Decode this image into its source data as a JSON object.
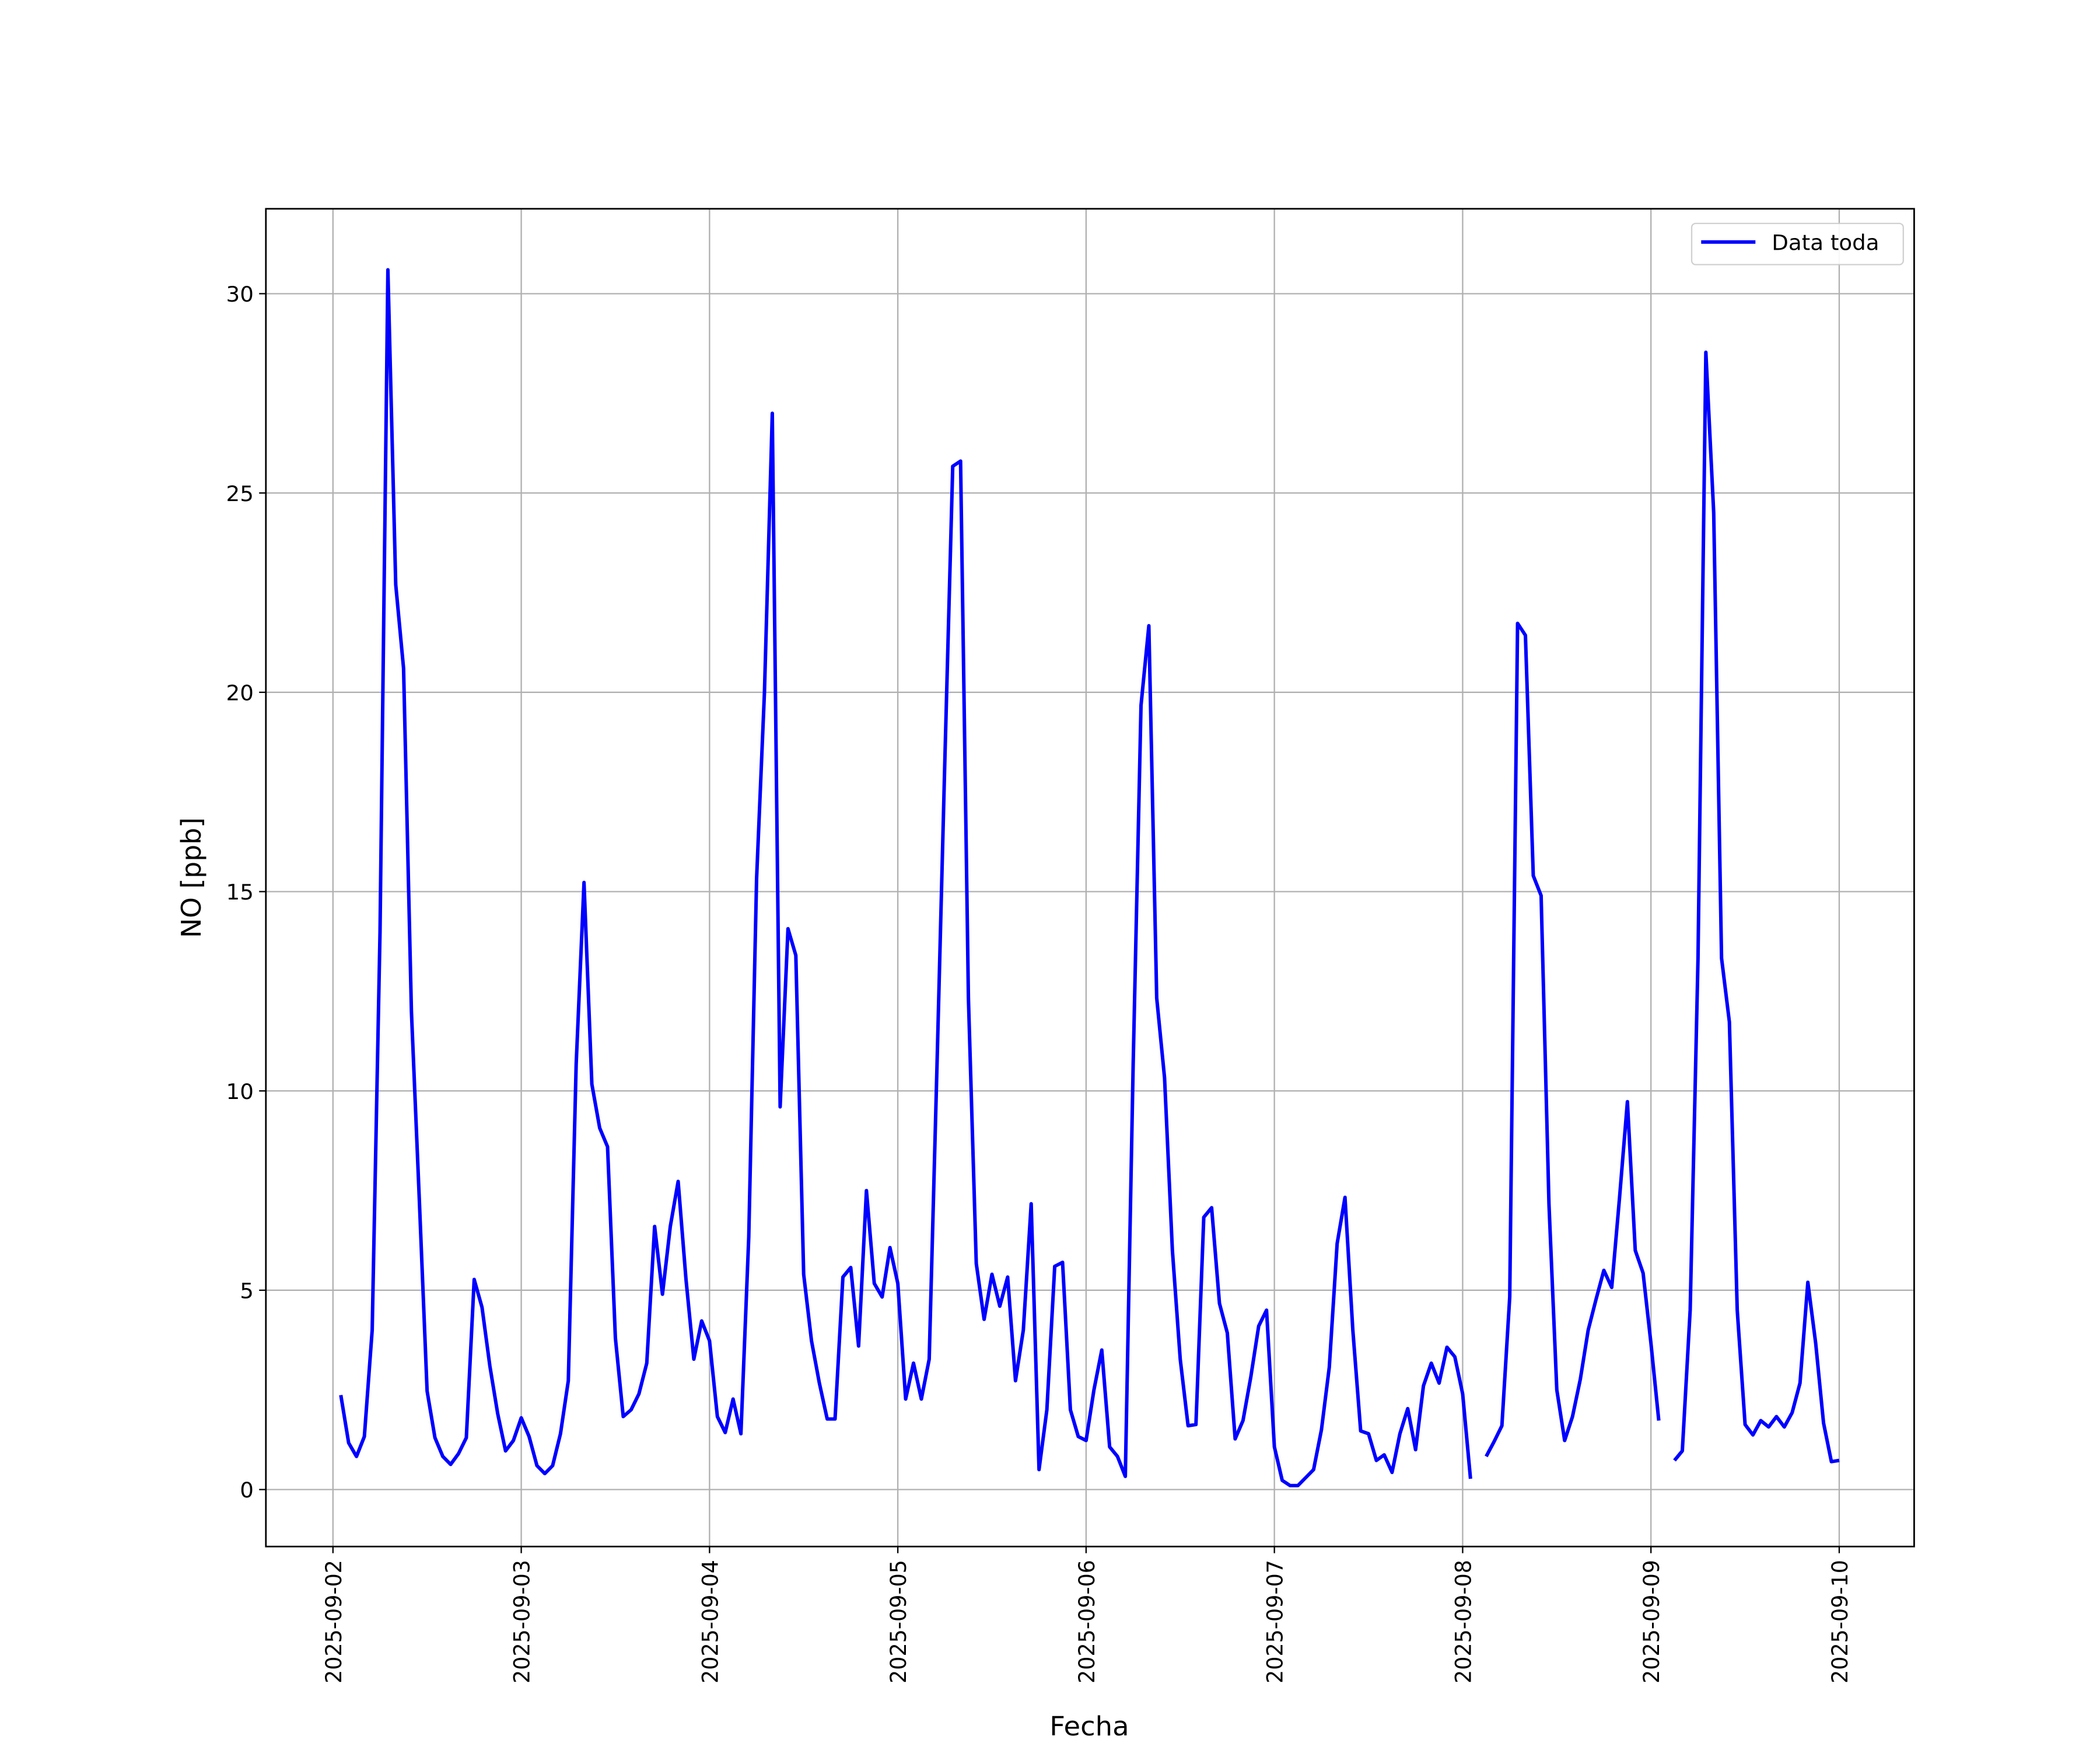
{
  "chart_data": {
    "type": "line",
    "xlabel": "Fecha",
    "ylabel": "NO [ppb]",
    "x": [
      "2025-09-02T01:00",
      "2025-09-02T02:00",
      "2025-09-02T03:00",
      "2025-09-02T04:00",
      "2025-09-02T05:00",
      "2025-09-02T06:00",
      "2025-09-02T07:00",
      "2025-09-02T08:00",
      "2025-09-02T09:00",
      "2025-09-02T10:00",
      "2025-09-02T11:00",
      "2025-09-02T12:00",
      "2025-09-02T13:00",
      "2025-09-02T14:00",
      "2025-09-02T15:00",
      "2025-09-02T16:00",
      "2025-09-02T17:00",
      "2025-09-02T18:00",
      "2025-09-02T19:00",
      "2025-09-02T20:00",
      "2025-09-02T21:00",
      "2025-09-02T22:00",
      "2025-09-02T23:00",
      "2025-09-03T00:00",
      "2025-09-03T01:00",
      "2025-09-03T02:00",
      "2025-09-03T03:00",
      "2025-09-03T04:00",
      "2025-09-03T05:00",
      "2025-09-03T06:00",
      "2025-09-03T07:00",
      "2025-09-03T08:00",
      "2025-09-03T09:00",
      "2025-09-03T10:00",
      "2025-09-03T11:00",
      "2025-09-03T12:00",
      "2025-09-03T13:00",
      "2025-09-03T14:00",
      "2025-09-03T15:00",
      "2025-09-03T16:00",
      "2025-09-03T17:00",
      "2025-09-03T18:00",
      "2025-09-03T19:00",
      "2025-09-03T20:00",
      "2025-09-03T21:00",
      "2025-09-03T22:00",
      "2025-09-03T23:00",
      "2025-09-04T00:00",
      "2025-09-04T01:00",
      "2025-09-04T02:00",
      "2025-09-04T03:00",
      "2025-09-04T04:00",
      "2025-09-04T05:00",
      "2025-09-04T06:00",
      "2025-09-04T07:00",
      "2025-09-04T08:00",
      "2025-09-04T09:00",
      "2025-09-04T10:00",
      "2025-09-04T11:00",
      "2025-09-04T12:00",
      "2025-09-04T13:00",
      "2025-09-04T14:00",
      "2025-09-04T15:00",
      "2025-09-04T16:00",
      "2025-09-04T17:00",
      "2025-09-04T18:00",
      "2025-09-04T19:00",
      "2025-09-04T20:00",
      "2025-09-04T21:00",
      "2025-09-04T22:00",
      "2025-09-04T23:00",
      "2025-09-05T00:00",
      "2025-09-05T01:00",
      "2025-09-05T02:00",
      "2025-09-05T03:00",
      "2025-09-05T04:00",
      "2025-09-05T05:00",
      "2025-09-05T06:00",
      "2025-09-05T07:00",
      "2025-09-05T08:00",
      "2025-09-05T09:00",
      "2025-09-05T10:00",
      "2025-09-05T11:00",
      "2025-09-05T12:00",
      "2025-09-05T13:00",
      "2025-09-05T14:00",
      "2025-09-05T15:00",
      "2025-09-05T16:00",
      "2025-09-05T17:00",
      "2025-09-05T18:00",
      "2025-09-05T19:00",
      "2025-09-05T20:00",
      "2025-09-05T21:00",
      "2025-09-05T22:00",
      "2025-09-05T23:00",
      "2025-09-06T00:00",
      "2025-09-06T01:00",
      "2025-09-06T02:00",
      "2025-09-06T03:00",
      "2025-09-06T04:00",
      "2025-09-06T05:00",
      "2025-09-06T06:00",
      "2025-09-06T07:00",
      "2025-09-06T08:00",
      "2025-09-06T09:00",
      "2025-09-06T10:00",
      "2025-09-06T11:00",
      "2025-09-06T12:00",
      "2025-09-06T13:00",
      "2025-09-06T14:00",
      "2025-09-06T15:00",
      "2025-09-06T16:00",
      "2025-09-06T17:00",
      "2025-09-06T18:00",
      "2025-09-06T19:00",
      "2025-09-06T20:00",
      "2025-09-06T21:00",
      "2025-09-06T22:00",
      "2025-09-06T23:00",
      "2025-09-07T00:00",
      "2025-09-07T01:00",
      "2025-09-07T02:00",
      "2025-09-07T03:00",
      "2025-09-07T04:00",
      "2025-09-07T05:00",
      "2025-09-07T06:00",
      "2025-09-07T07:00",
      "2025-09-07T08:00",
      "2025-09-07T09:00",
      "2025-09-07T10:00",
      "2025-09-07T11:00",
      "2025-09-07T12:00",
      "2025-09-07T13:00",
      "2025-09-07T14:00",
      "2025-09-07T15:00",
      "2025-09-07T16:00",
      "2025-09-07T17:00",
      "2025-09-07T18:00",
      "2025-09-07T19:00",
      "2025-09-07T20:00",
      "2025-09-07T21:00",
      "2025-09-07T22:00",
      "2025-09-07T23:00",
      "2025-09-08T00:00",
      "2025-09-08T01:00",
      "2025-09-08T02:00",
      "2025-09-08T03:00",
      "2025-09-08T04:00",
      "2025-09-08T05:00",
      "2025-09-08T06:00",
      "2025-09-08T07:00",
      "2025-09-08T08:00",
      "2025-09-08T09:00",
      "2025-09-08T10:00",
      "2025-09-08T11:00",
      "2025-09-08T12:00",
      "2025-09-08T13:00",
      "2025-09-08T14:00",
      "2025-09-08T15:00",
      "2025-09-08T16:00",
      "2025-09-08T17:00",
      "2025-09-08T18:00",
      "2025-09-08T19:00",
      "2025-09-08T20:00",
      "2025-09-08T21:00",
      "2025-09-08T22:00",
      "2025-09-08T23:00",
      "2025-09-09T00:00",
      "2025-09-09T01:00",
      "2025-09-09T02:00",
      "2025-09-09T03:00",
      "2025-09-09T04:00",
      "2025-09-09T05:00",
      "2025-09-09T06:00",
      "2025-09-09T07:00",
      "2025-09-09T08:00",
      "2025-09-09T09:00",
      "2025-09-09T10:00",
      "2025-09-09T11:00",
      "2025-09-09T12:00",
      "2025-09-09T13:00",
      "2025-09-09T14:00",
      "2025-09-09T15:00",
      "2025-09-09T16:00",
      "2025-09-09T17:00",
      "2025-09-09T18:00",
      "2025-09-09T19:00",
      "2025-09-09T20:00",
      "2025-09-09T21:00",
      "2025-09-09T22:00",
      "2025-09-09T23:00",
      "2025-09-10T00:00"
    ],
    "series": [
      {
        "name": "Data toda",
        "color": "#0000ff",
        "values": [
          2.37,
          1.17,
          0.83,
          1.33,
          4.0,
          14,
          30.6,
          22.7,
          20.6,
          12,
          7.3,
          2.47,
          1.3,
          0.83,
          0.63,
          0.9,
          1.3,
          5.27,
          4.57,
          3.1,
          1.9,
          0.97,
          1.23,
          1.8,
          1.33,
          0.6,
          0.4,
          0.6,
          1.4,
          2.73,
          10.67,
          15.23,
          10.17,
          9.07,
          8.6,
          3.8,
          1.83,
          2.0,
          2.4,
          3.17,
          6.6,
          4.9,
          6.6,
          7.73,
          5.27,
          3.27,
          4.23,
          3.73,
          1.83,
          1.43,
          2.27,
          1.4,
          6.33,
          15.33,
          20,
          27,
          9.6,
          14.07,
          13.4,
          5.4,
          3.73,
          2.67,
          1.77,
          1.77,
          5.33,
          5.57,
          3.6,
          7.5,
          5.17,
          4.83,
          6.07,
          5.17,
          2.27,
          3.17,
          2.27,
          3.27,
          10.67,
          18.33,
          25.67,
          25.8,
          12.33,
          5.67,
          4.27,
          5.4,
          4.6,
          5.33,
          2.73,
          4.0,
          7.17,
          0.5,
          2.0,
          5.6,
          5.7,
          2.0,
          1.33,
          1.23,
          2.5,
          3.5,
          1.07,
          0.83,
          0.33,
          10.67,
          19.67,
          21.67,
          12.33,
          10.33,
          6,
          3.27,
          1.6,
          1.63,
          6.83,
          7.07,
          4.67,
          3.93,
          1.27,
          1.73,
          2.83,
          4.1,
          4.5,
          1.07,
          0.23,
          0.1,
          0.1,
          0.3,
          0.5,
          1.5,
          3.07,
          6.17,
          7.33,
          4.0,
          1.47,
          1.4,
          0.73,
          0.87,
          0.43,
          1.4,
          2.03,
          1.0,
          2.6,
          3.17,
          2.67,
          3.57,
          3.33,
          2.4,
          0.27,
          null,
          0.83,
          1.2,
          1.6,
          4.83,
          21.73,
          21.43,
          15.4,
          14.9,
          7.17,
          2.5,
          1.23,
          1.83,
          2.77,
          4.0,
          4.77,
          5.5,
          5.07,
          7.33,
          9.73,
          6.0,
          5.43,
          3.67,
          1.73,
          null,
          0.73,
          0.97,
          4.5,
          13.33,
          28.53,
          24.5,
          13.33,
          11.73,
          4.5,
          1.63,
          1.37,
          1.73,
          1.57,
          1.83,
          1.57,
          1.93,
          2.67,
          5.2,
          3.67,
          1.67,
          0.7,
          0.73
        ]
      }
    ],
    "xlim": [
      "2025-09-01T15:27",
      "2025-09-10T09:33"
    ],
    "xticks": [
      "2025-09-02",
      "2025-09-03",
      "2025-09-04",
      "2025-09-05",
      "2025-09-06",
      "2025-09-07",
      "2025-09-08",
      "2025-09-09",
      "2025-09-10"
    ],
    "ylim": [
      -1.43,
      32.13
    ],
    "yticks": [
      0,
      5,
      10,
      15,
      20,
      25,
      30
    ],
    "grid": true,
    "legend": "upper right"
  }
}
